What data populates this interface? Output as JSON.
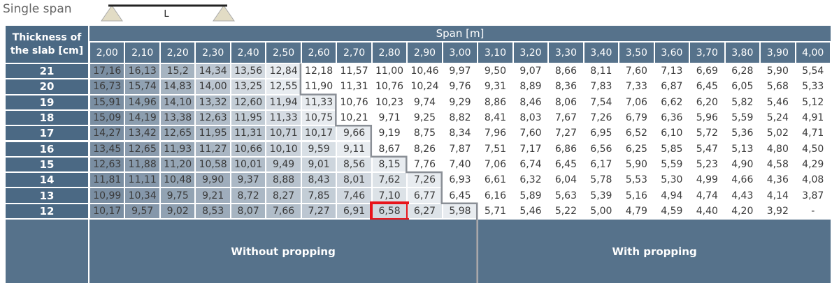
{
  "header": {
    "title": "Single span",
    "beam_label": "L"
  },
  "table": {
    "row_header": "Thickness of the slab [cm]",
    "column_header": "Span [m]",
    "spans": [
      "2,00",
      "2,10",
      "2,20",
      "2,30",
      "2,40",
      "2,50",
      "2,60",
      "2,70",
      "2,80",
      "2,90",
      "3,00",
      "3,10",
      "3,20",
      "3,30",
      "3,40",
      "3,50",
      "3,60",
      "3,70",
      "3,80",
      "3,90",
      "4,00"
    ],
    "rows": [
      {
        "thickness": "21",
        "values": [
          "17,16",
          "16,13",
          "15,2",
          "14,34",
          "13,56",
          "12,84",
          "12,18",
          "11,57",
          "11,00",
          "10,46",
          "9,97",
          "9,50",
          "9,07",
          "8,66",
          "8,11",
          "7,60",
          "7,13",
          "6,69",
          "6,28",
          "5,90",
          "5,54"
        ]
      },
      {
        "thickness": "20",
        "values": [
          "16,73",
          "15,74",
          "14,83",
          "14,00",
          "13,25",
          "12,55",
          "11,90",
          "11,31",
          "10,76",
          "10,24",
          "9,76",
          "9,31",
          "8,89",
          "8,36",
          "7,83",
          "7,33",
          "6,87",
          "6,45",
          "6,05",
          "5,68",
          "5,33"
        ]
      },
      {
        "thickness": "19",
        "values": [
          "15,91",
          "14,96",
          "14,10",
          "13,32",
          "12,60",
          "11,94",
          "11,33",
          "10,76",
          "10,23",
          "9,74",
          "9,29",
          "8,86",
          "8,46",
          "8,06",
          "7,54",
          "7,06",
          "6,62",
          "6,20",
          "5,82",
          "5,46",
          "5,12"
        ]
      },
      {
        "thickness": "18",
        "values": [
          "15,09",
          "14,19",
          "13,38",
          "12,63",
          "11,95",
          "11,33",
          "10,75",
          "10,21",
          "9,71",
          "9,25",
          "8,82",
          "8,41",
          "8,03",
          "7,67",
          "7,26",
          "6,79",
          "6,36",
          "5,96",
          "5,59",
          "5,24",
          "4,91"
        ]
      },
      {
        "thickness": "17",
        "values": [
          "14,27",
          "13,42",
          "12,65",
          "11,95",
          "11,31",
          "10,71",
          "10,17",
          "9,66",
          "9,19",
          "8,75",
          "8,34",
          "7,96",
          "7,60",
          "7,27",
          "6,95",
          "6,52",
          "6,10",
          "5,72",
          "5,36",
          "5,02",
          "4,71"
        ]
      },
      {
        "thickness": "16",
        "values": [
          "13,45",
          "12,65",
          "11,93",
          "11,27",
          "10,66",
          "10,10",
          "9,59",
          "9,11",
          "8,67",
          "8,26",
          "7,87",
          "7,51",
          "7,17",
          "6,86",
          "6,56",
          "6,25",
          "5,85",
          "5,47",
          "5,13",
          "4,80",
          "4,50"
        ]
      },
      {
        "thickness": "15",
        "values": [
          "12,63",
          "11,88",
          "11,20",
          "10,58",
          "10,01",
          "9,49",
          "9,01",
          "8,56",
          "8,15",
          "7,76",
          "7,40",
          "7,06",
          "6,74",
          "6,45",
          "6,17",
          "5,90",
          "5,59",
          "5,23",
          "4,90",
          "4,58",
          "4,29"
        ]
      },
      {
        "thickness": "14",
        "values": [
          "11,81",
          "11,11",
          "10,48",
          "9,90",
          "9,37",
          "8,88",
          "8,43",
          "8,01",
          "7,62",
          "7,26",
          "6,93",
          "6,61",
          "6,32",
          "6,04",
          "5,78",
          "5,53",
          "5,30",
          "4,99",
          "4,66",
          "4,36",
          "4,08"
        ]
      },
      {
        "thickness": "13",
        "values": [
          "10,99",
          "10,34",
          "9,75",
          "9,21",
          "8,72",
          "8,27",
          "7,85",
          "7,46",
          "7,10",
          "6,77",
          "6,45",
          "6,16",
          "5,89",
          "5,63",
          "5,39",
          "5,16",
          "4,94",
          "4,74",
          "4,43",
          "4,14",
          "3,87"
        ]
      },
      {
        "thickness": "12",
        "values": [
          "10,17",
          "9,57",
          "9,02",
          "8,53",
          "8,07",
          "7,66",
          "7,27",
          "6,91",
          "6,58",
          "6,27",
          "5,98",
          "5,71",
          "5,46",
          "5,22",
          "5,00",
          "4,79",
          "4,59",
          "4,40",
          "4,20",
          "3,92",
          "-"
        ]
      }
    ]
  },
  "footer": {
    "left": "Without propping",
    "right": "With propping"
  }
}
